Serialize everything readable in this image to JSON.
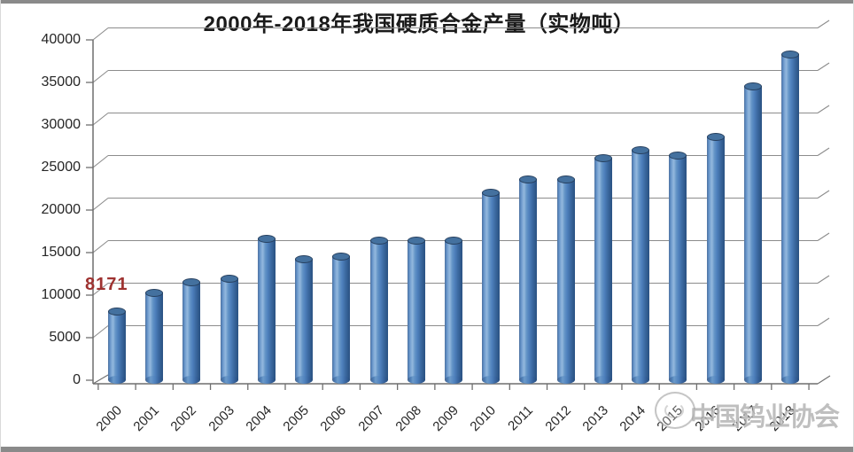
{
  "page": {
    "background": "#ffffff",
    "edge_bar_color": "#8a8a8a"
  },
  "chart_data": {
    "type": "bar",
    "bar_style": "3d-cylinder",
    "title": "2000年-2018年我国硬质合金产量（实物吨）",
    "categories": [
      "2000",
      "2001",
      "2002",
      "2003",
      "2004",
      "2005",
      "2006",
      "2007",
      "2008",
      "2009",
      "2010",
      "2011",
      "2012",
      "2013",
      "2014",
      "2015",
      "2016",
      "2017",
      "2018"
    ],
    "values": [
      8171,
      10300,
      11600,
      12000,
      16700,
      14300,
      14600,
      16500,
      16500,
      16500,
      22100,
      23600,
      23600,
      26100,
      27100,
      26500,
      28600,
      34600,
      38300
    ],
    "xlabel": "",
    "ylabel": "",
    "ylim": [
      0,
      40000
    ],
    "yticks": [
      0,
      5000,
      10000,
      15000,
      20000,
      25000,
      30000,
      35000,
      40000
    ],
    "grid": true,
    "legend": "none",
    "data_label": {
      "category": "2000",
      "text": "8171",
      "color": "#9E3230"
    },
    "colors": {
      "bar": "#4F81BD",
      "bar_dark": "#2B5283",
      "bar_light": "#93B8DD",
      "grid": "#8C8C8C",
      "axis": "#6F6F6F",
      "text": "#262626",
      "title": "#1A1A1A"
    }
  },
  "watermark": {
    "text": "中国钨业协会",
    "logo": "ctia-circle-logo"
  }
}
